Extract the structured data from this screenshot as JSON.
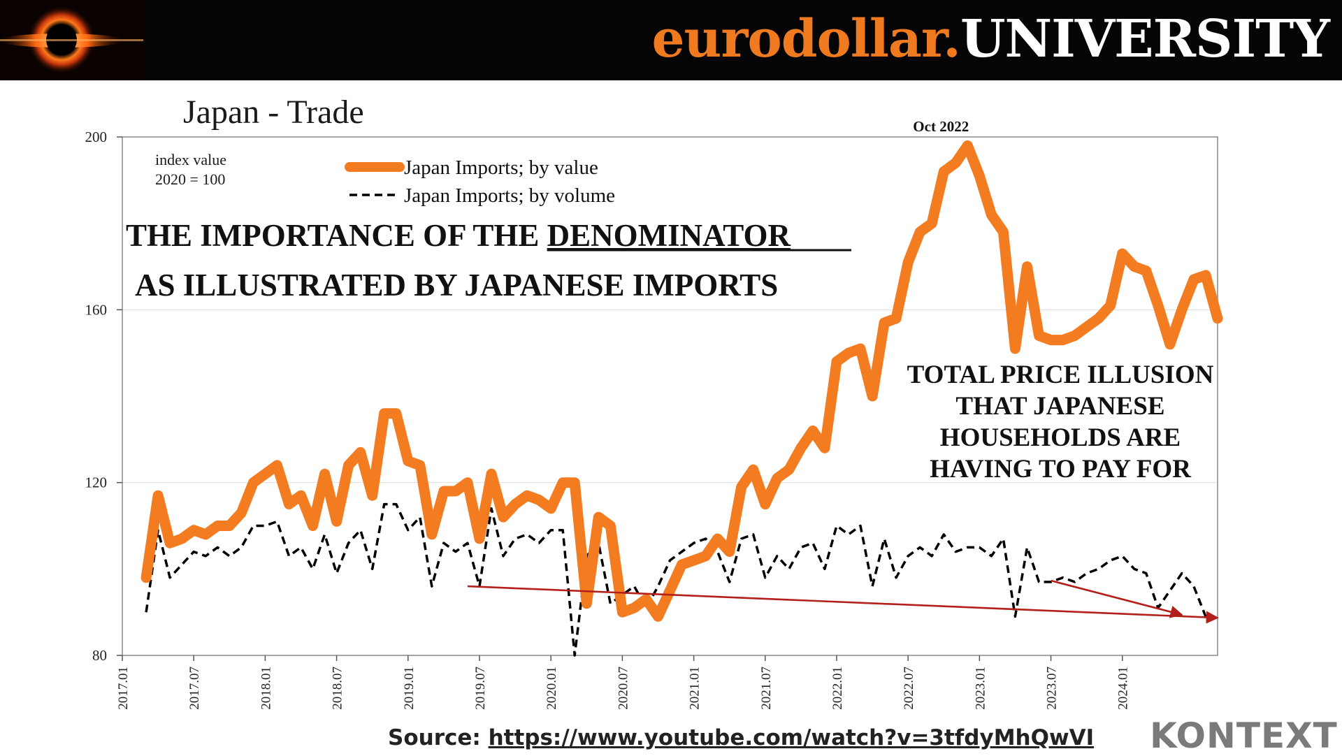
{
  "brand": {
    "part1": "eurodollar.",
    "part2": "UNIVERSITY",
    "accent": "#f07a20"
  },
  "logo_icon": "black-hole-ring-icon",
  "headline": {
    "line1_prefix": "THE IMPORTANCE OF THE ",
    "line1_emphasis": "DENOMINATOR",
    "line2": "AS ILLUSTRATED BY JAPANESE IMPORTS"
  },
  "callout": [
    "TOTAL PRICE ILLUSION",
    "THAT JAPANESE",
    "HOUSEHOLDS ARE",
    "HAVING TO PAY FOR"
  ],
  "source": {
    "label": "Source: ",
    "url": "https://www.youtube.com/watch?v=3tfdyMhQwVI"
  },
  "watermark": "KONTEXT",
  "chart_data": {
    "type": "line",
    "title": "Japan - Trade",
    "index_note": [
      "index value",
      "2020 = 100"
    ],
    "peak_label": "Oct 2022",
    "ylim": [
      80,
      200
    ],
    "y_ticks": [
      80,
      120,
      160,
      200
    ],
    "x_ticks": [
      "2017.01",
      "2017.07",
      "2018.01",
      "2018.07",
      "2019.01",
      "2019.07",
      "2020.01",
      "2020.07",
      "2021.01",
      "2021.07",
      "2022.01",
      "2022.07",
      "2023.01",
      "2023.07",
      "2024.01"
    ],
    "x_start": "2017.01",
    "x_end": "2024.09",
    "grid": "horizontal",
    "legend_position": "top-center",
    "series": [
      {
        "name": "Japan Imports; by value",
        "color": "#f47c20",
        "style": "solid-thick",
        "values": [
          98,
          117,
          106,
          107,
          109,
          108,
          110,
          110,
          113,
          120,
          122,
          124,
          115,
          117,
          110,
          122,
          111,
          124,
          127,
          117,
          136,
          136,
          125,
          124,
          108,
          118,
          118,
          120,
          107,
          122,
          112,
          115,
          117,
          116,
          114,
          120,
          120,
          92,
          112,
          110,
          90,
          91,
          93,
          89,
          95,
          101,
          102,
          103,
          107,
          104,
          119,
          123,
          115,
          121,
          123,
          128,
          132,
          128,
          148,
          150,
          151,
          140,
          157,
          158,
          171,
          178,
          180,
          192,
          194,
          198,
          191,
          182,
          178,
          151,
          170,
          154,
          153,
          153,
          154,
          156,
          158,
          161,
          173,
          170,
          169,
          161,
          152,
          160,
          167,
          168,
          158
        ]
      },
      {
        "name": "Japan Imports; by volume",
        "color": "#000000",
        "style": "dashed",
        "values": [
          90,
          109,
          98,
          101,
          104,
          103,
          105,
          103,
          105,
          110,
          110,
          111,
          103,
          105,
          100,
          108,
          99,
          106,
          109,
          100,
          115,
          115,
          109,
          112,
          96,
          106,
          104,
          106,
          96,
          114,
          103,
          107,
          108,
          106,
          109,
          109,
          80,
          103,
          106,
          92,
          94,
          96,
          91,
          96,
          102,
          104,
          106,
          107,
          104,
          97,
          107,
          108,
          98,
          103,
          100,
          105,
          106,
          100,
          110,
          108,
          110,
          96,
          107,
          98,
          103,
          105,
          103,
          108,
          104,
          105,
          105,
          103,
          107,
          89,
          105,
          97,
          97,
          98,
          97,
          99,
          100,
          102,
          103,
          100,
          99,
          91,
          95,
          99,
          96,
          89
        ]
      }
    ],
    "annotations": [
      {
        "type": "arrow",
        "color": "#b3201c",
        "from": {
          "x": "2019.06",
          "y": 96
        },
        "to": {
          "x": "2024.09",
          "y": 88.7
        }
      },
      {
        "type": "arrow",
        "color": "#b3201c",
        "from": {
          "x": "2023.07",
          "y": 97.3
        },
        "to": {
          "x": "2024.06",
          "y": 89.4
        }
      }
    ]
  }
}
